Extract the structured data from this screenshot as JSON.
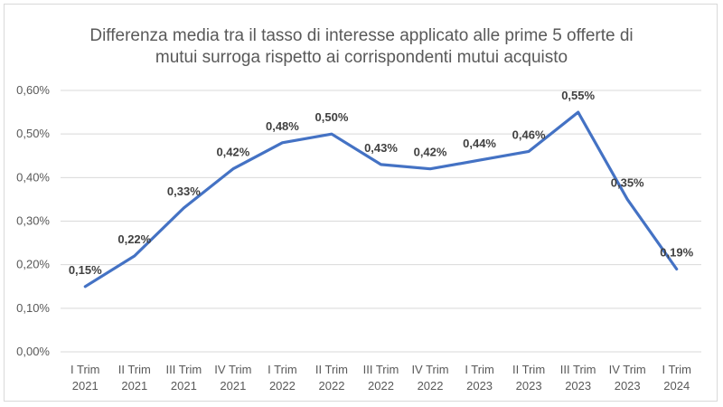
{
  "chart_data": {
    "type": "line",
    "title_lines": [
      "Differenza media tra il tasso di interesse applicato alle prime 5 offerte di",
      "mutui surroga rispetto ai corrispondenti mutui acquisto"
    ],
    "categories": [
      [
        "I Trim",
        "2021"
      ],
      [
        "II Trim",
        "2021"
      ],
      [
        "III Trim",
        "2021"
      ],
      [
        "IV Trim",
        "2021"
      ],
      [
        "I Trim",
        "2022"
      ],
      [
        "II Trim",
        "2022"
      ],
      [
        "III Trim",
        "2022"
      ],
      [
        "IV Trim",
        "2022"
      ],
      [
        "I Trim",
        "2023"
      ],
      [
        "II Trim",
        "2023"
      ],
      [
        "III Trim",
        "2023"
      ],
      [
        "IV Trim",
        "2023"
      ],
      [
        "I Trim",
        "2024"
      ]
    ],
    "series": [
      {
        "values": [
          0.15,
          0.22,
          0.33,
          0.42,
          0.48,
          0.5,
          0.43,
          0.42,
          0.44,
          0.46,
          0.55,
          0.35,
          0.19
        ],
        "labels": [
          "0,15%",
          "0,22%",
          "0,33%",
          "0,42%",
          "0,48%",
          "0,50%",
          "0,43%",
          "0,42%",
          "0,44%",
          "0,46%",
          "0,55%",
          "0,35%",
          "0,19%"
        ],
        "color": "#4472c4"
      }
    ],
    "yticks": [
      "0,00%",
      "0,10%",
      "0,20%",
      "0,30%",
      "0,40%",
      "0,50%",
      "0,60%"
    ],
    "ylim": [
      0,
      0.6
    ],
    "grid": true,
    "legend": "none"
  }
}
